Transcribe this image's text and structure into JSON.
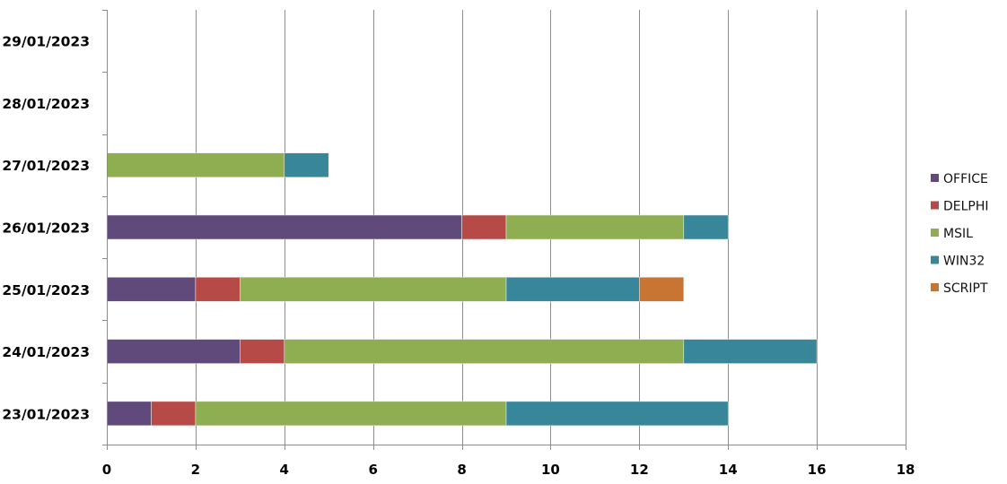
{
  "chart_data": {
    "type": "bar",
    "orientation": "horizontal",
    "stacked": true,
    "categories": [
      "23/01/2023",
      "24/01/2023",
      "25/01/2023",
      "26/01/2023",
      "27/01/2023",
      "28/01/2023",
      "29/01/2023"
    ],
    "series": [
      {
        "name": "OFFICE",
        "color": "#604a7b",
        "values": [
          1,
          3,
          2,
          8,
          0,
          0,
          0
        ]
      },
      {
        "name": "DELPHI",
        "color": "#b64a47",
        "values": [
          1,
          1,
          1,
          1,
          0,
          0,
          0
        ]
      },
      {
        "name": "MSIL",
        "color": "#8fae51",
        "values": [
          7,
          9,
          6,
          4,
          4,
          0,
          0
        ]
      },
      {
        "name": "WIN32",
        "color": "#388699",
        "values": [
          5,
          3,
          3,
          1,
          1,
          0,
          0
        ]
      },
      {
        "name": "SCRIPT",
        "color": "#c87533",
        "values": [
          0,
          0,
          1,
          0,
          0,
          0,
          0
        ]
      }
    ],
    "xlim": [
      0,
      18
    ],
    "xticks": [
      "0",
      "2",
      "4",
      "6",
      "8",
      "10",
      "12",
      "14",
      "16",
      "18"
    ],
    "title": "",
    "xlabel": "",
    "ylabel": "",
    "grid": "vertical",
    "legend_position": "right"
  }
}
